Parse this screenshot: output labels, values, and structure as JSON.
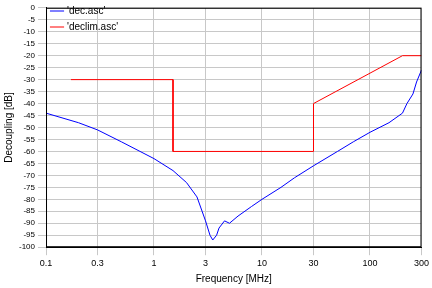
{
  "chart_data": {
    "type": "line",
    "log": "x",
    "grid": true,
    "legend": "upper left",
    "x_label": "Frequency [MHz]",
    "y_label": "Decoupling [dB]",
    "xlim": [
      0.1,
      300
    ],
    "xticks": [
      0.1,
      0.3,
      1,
      3,
      10,
      30,
      100,
      300
    ],
    "ylim": [
      -100,
      0
    ],
    "yticks": [
      -100,
      -95,
      -90,
      -85,
      -80,
      -75,
      -70,
      -65,
      -60,
      -55,
      -50,
      -45,
      -40,
      -35,
      -30,
      -25,
      -20,
      -15,
      -10,
      -5,
      0
    ],
    "series": [
      {
        "name": "'dec.asc'",
        "color": "#0000ff",
        "x": [
          0.1,
          0.2,
          0.3,
          0.5,
          1,
          1.5,
          2,
          2.5,
          3,
          3.3,
          3.5,
          3.8,
          4,
          4.5,
          5,
          6,
          8,
          10,
          15,
          20,
          30,
          50,
          70,
          100,
          150,
          200,
          220,
          250,
          270,
          300
        ],
        "values": [
          -44,
          -48,
          -51,
          -56,
          -63,
          -68,
          -73,
          -79,
          -89,
          -95,
          -97,
          -95,
          -92,
          -89,
          -90,
          -87,
          -83,
          -80,
          -75,
          -71,
          -66,
          -60,
          -56,
          -52,
          -48,
          -44,
          -40,
          -36,
          -31,
          -26
        ]
      },
      {
        "name": "'declim.asc'",
        "color": "#ff0000",
        "x": [
          0.17,
          1.5,
          1.5,
          30,
          30,
          200,
          300
        ],
        "values": [
          -30,
          -30,
          -60,
          -60,
          -40,
          -20,
          -20
        ]
      }
    ]
  }
}
